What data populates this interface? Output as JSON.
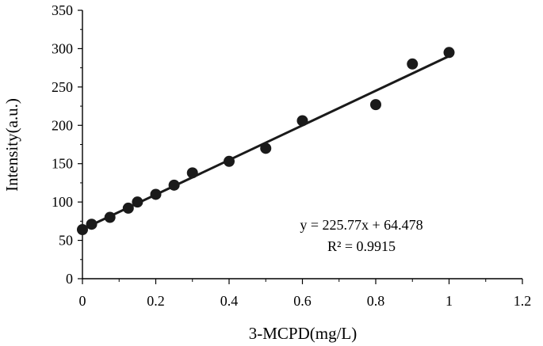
{
  "chart_data": {
    "type": "scatter",
    "xlabel": "3-MCPD(mg/L)",
    "ylabel": "Intensity(a.u.)",
    "xlim": [
      0,
      1.2
    ],
    "ylim": [
      0,
      350
    ],
    "x_ticks": [
      "0",
      "0.2",
      "0.4",
      "0.6",
      "0.8",
      "1",
      "1.2"
    ],
    "y_ticks": [
      "0",
      "50",
      "100",
      "150",
      "200",
      "250",
      "300",
      "350"
    ],
    "grid": false,
    "legend": "none",
    "series": [
      {
        "points": [
          {
            "x": 0,
            "y": 64
          },
          {
            "x": 0.025,
            "y": 71
          },
          {
            "x": 0.075,
            "y": 80
          },
          {
            "x": 0.125,
            "y": 92
          },
          {
            "x": 0.15,
            "y": 100
          },
          {
            "x": 0.2,
            "y": 110
          },
          {
            "x": 0.25,
            "y": 122
          },
          {
            "x": 0.3,
            "y": 138
          },
          {
            "x": 0.4,
            "y": 153
          },
          {
            "x": 0.5,
            "y": 170
          },
          {
            "x": 0.6,
            "y": 206
          },
          {
            "x": 0.8,
            "y": 227
          },
          {
            "x": 0.9,
            "y": 280
          },
          {
            "x": 1.0,
            "y": 295
          }
        ],
        "color": "#1a1a1a"
      }
    ],
    "trendline": {
      "slope": 225.77,
      "intercept": 64.478,
      "x_range": [
        0,
        1.0
      ],
      "color": "#1a1a1a"
    },
    "annotations": {
      "equation": "y = 225.77x + 64.478",
      "r_squared": "R² = 0.9915"
    }
  }
}
